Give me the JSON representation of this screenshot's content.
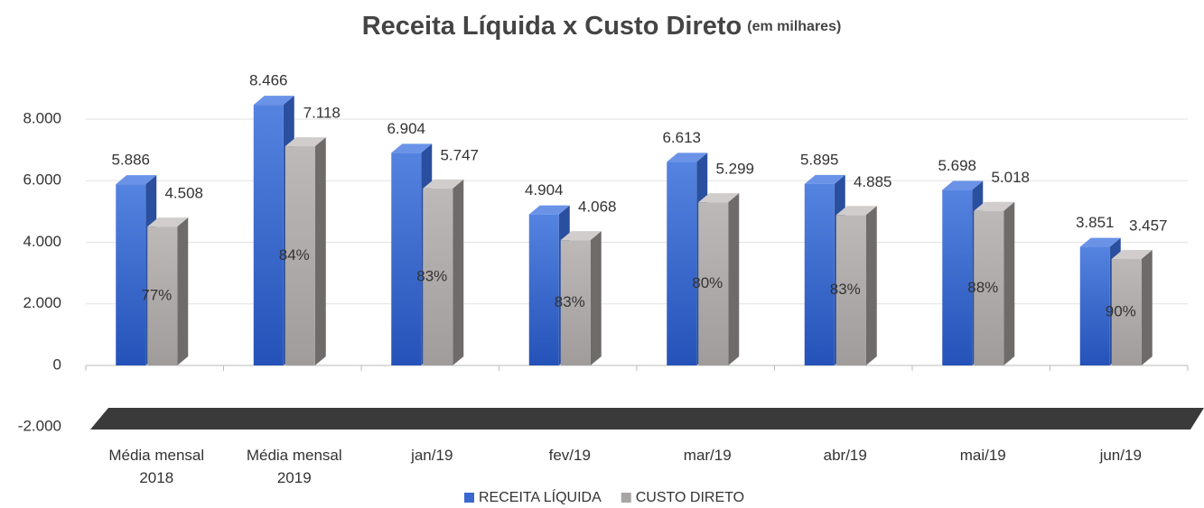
{
  "chart_data": {
    "type": "bar3d",
    "title": "Receita Líquida x Custo Direto",
    "subtitle": "(em milhares)",
    "categories": [
      "Média mensal 2018",
      "Média mensal 2019",
      "jan/19",
      "fev/19",
      "mar/19",
      "abr/19",
      "mai/19",
      "jun/19"
    ],
    "series": [
      {
        "name": "RECEITA LÍQUIDA",
        "color": "#3a67d0",
        "values": [
          5886,
          8466,
          6904,
          4904,
          6613,
          5895,
          5698,
          3851
        ],
        "value_labels": [
          "5.886",
          "8.466",
          "6.904",
          "4.904",
          "6.613",
          "5.895",
          "5.698",
          "3.851"
        ]
      },
      {
        "name": "CUSTO DIRETO",
        "color": "#a8a4a3",
        "values": [
          4508,
          7118,
          5747,
          4068,
          5299,
          4885,
          5018,
          3457
        ],
        "value_labels": [
          "4.508",
          "7.118",
          "5.747",
          "4.068",
          "5.299",
          "4.885",
          "5.018",
          "3.457"
        ]
      }
    ],
    "ratios": {
      "values": [
        77,
        84,
        83,
        83,
        80,
        83,
        88,
        90
      ],
      "value_labels": [
        "77%",
        "84%",
        "83%",
        "83%",
        "80%",
        "83%",
        "88%",
        "90%"
      ]
    },
    "ylim": [
      -2000,
      9000
    ],
    "yticks": [
      {
        "value": -2000,
        "label": "-2.000"
      },
      0,
      {
        "value": 2000,
        "label": "2.000"
      },
      {
        "value": 4000,
        "label": "4.000"
      },
      {
        "value": 6000,
        "label": "6.000"
      },
      {
        "value": 8000,
        "label": "8.000"
      }
    ],
    "grid": true,
    "legend": "bottom"
  }
}
